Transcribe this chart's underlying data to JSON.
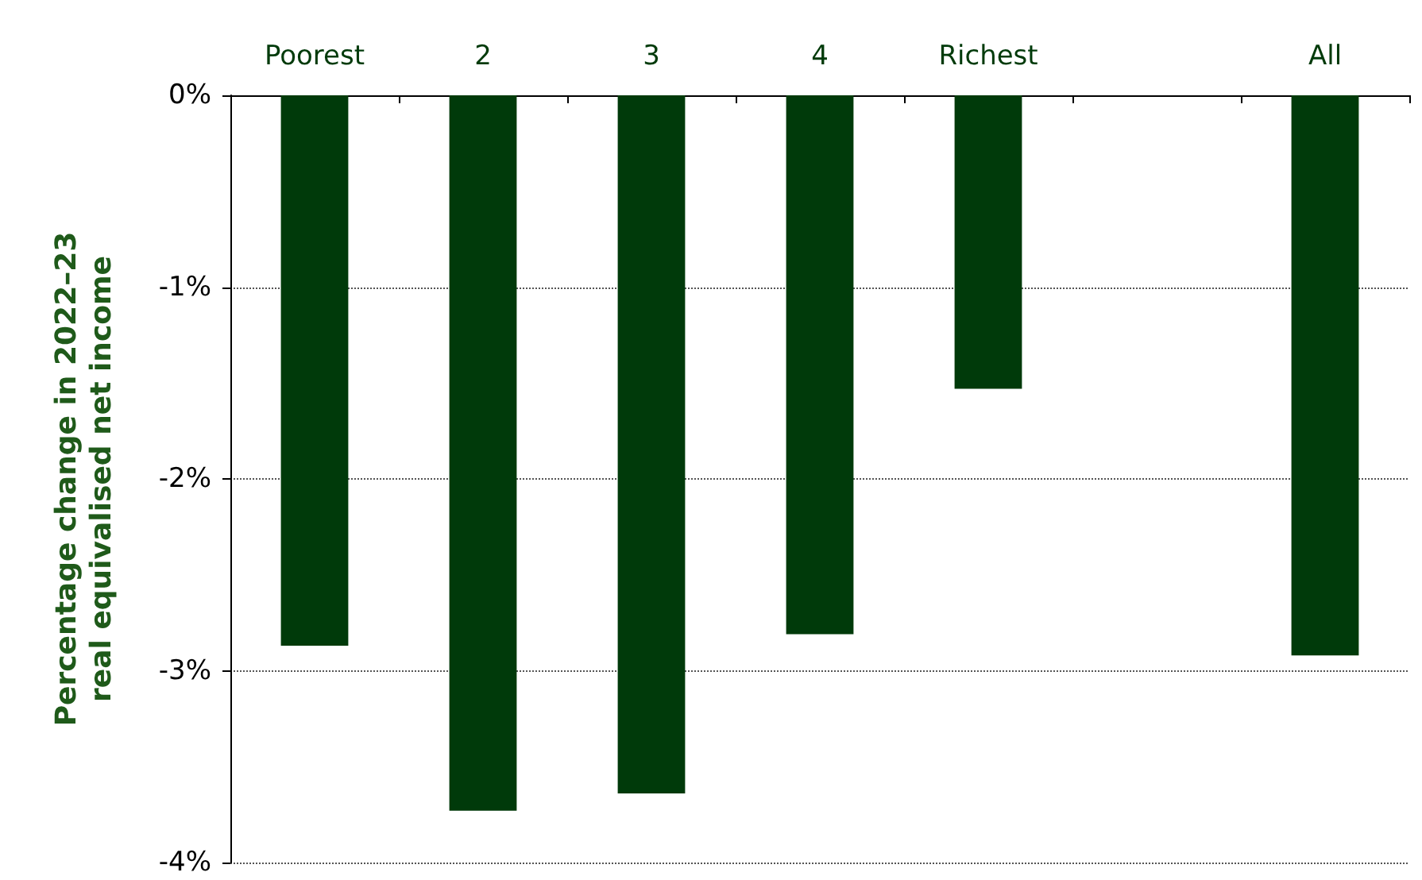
{
  "chart_data": {
    "type": "bar",
    "categories": [
      "Poorest",
      "2",
      "3",
      "4",
      "Richest",
      null,
      "All"
    ],
    "values": [
      -2.87,
      -3.73,
      -3.64,
      -2.81,
      -1.53,
      null,
      -2.92
    ],
    "color": "#003a0a",
    "ylabel": "Percentage change in 2022–23 real equivalised net income",
    "ylim": [
      -4,
      0
    ],
    "yticks": [
      {
        "value": 0,
        "label": "0%"
      },
      {
        "value": -1,
        "label": "-1%"
      },
      {
        "value": -2,
        "label": "-2%"
      },
      {
        "value": -3,
        "label": "-3%"
      },
      {
        "value": -4,
        "label": "-4%"
      }
    ],
    "grid": "y"
  }
}
